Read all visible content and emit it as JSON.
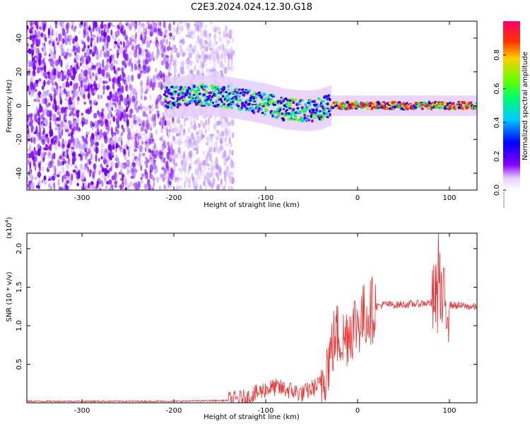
{
  "title": "C2E3.2024.024.12.30.G18",
  "chart_data": [
    {
      "type": "heatmap",
      "xlabel": "Height of straight line (km)",
      "ylabel": "Frequency (Hz)",
      "xlim": [
        -360,
        130
      ],
      "ylim": [
        -50,
        50
      ],
      "xticks": [
        -300,
        -200,
        -100,
        0,
        100
      ],
      "yticks": [
        -40,
        -20,
        0,
        20,
        40
      ],
      "colorbar": {
        "label": "Normalized spectral amplitude",
        "range": [
          0,
          1
        ],
        "ticks": [
          "0.0",
          "0.2",
          "0.4",
          "0.6",
          "0.8"
        ]
      },
      "ridge": {
        "x": [
          -205,
          -180,
          -160,
          -140,
          -120,
          -100,
          -80,
          -60,
          -50,
          -40,
          -30,
          -20,
          0,
          20,
          40,
          60,
          80,
          100,
          130
        ],
        "y": [
          5,
          6,
          6,
          5,
          3,
          1,
          -2,
          -3,
          -3,
          -2,
          0,
          0,
          0,
          0,
          0,
          0,
          0,
          0,
          0
        ]
      }
    },
    {
      "type": "line",
      "xlabel": "Height of straight line (km)",
      "ylabel": "SNR (10 * v/v)",
      "y_multiplier": "(x10^4)",
      "xlim": [
        -360,
        130
      ],
      "ylim": [
        0,
        2.2
      ],
      "xticks": [
        -300,
        -200,
        -100,
        0,
        100
      ],
      "yticks": [
        0.5,
        1.0,
        1.5,
        2.0
      ],
      "series": [
        {
          "color": "#ee3333",
          "x": [
            -360,
            -300,
            -200,
            -140,
            -120,
            -110,
            -100,
            -90,
            -80,
            -70,
            -60,
            -50,
            -40,
            -35,
            -30,
            -25,
            -20,
            -15,
            -10,
            -5,
            0,
            10,
            20,
            30,
            40,
            60,
            80,
            85,
            88,
            90,
            92,
            95,
            100,
            110,
            120,
            130
          ],
          "y": [
            0.02,
            0.02,
            0.02,
            0.03,
            0.06,
            0.12,
            0.18,
            0.2,
            0.18,
            0.15,
            0.12,
            0.18,
            0.25,
            0.45,
            0.6,
            0.85,
            0.9,
            0.8,
            0.95,
            1.0,
            1.05,
            1.15,
            1.25,
            1.28,
            1.27,
            1.28,
            1.3,
            1.35,
            1.3,
            1.15,
            1.3,
            1.28,
            1.27,
            1.26,
            1.25,
            1.24
          ]
        }
      ]
    }
  ]
}
